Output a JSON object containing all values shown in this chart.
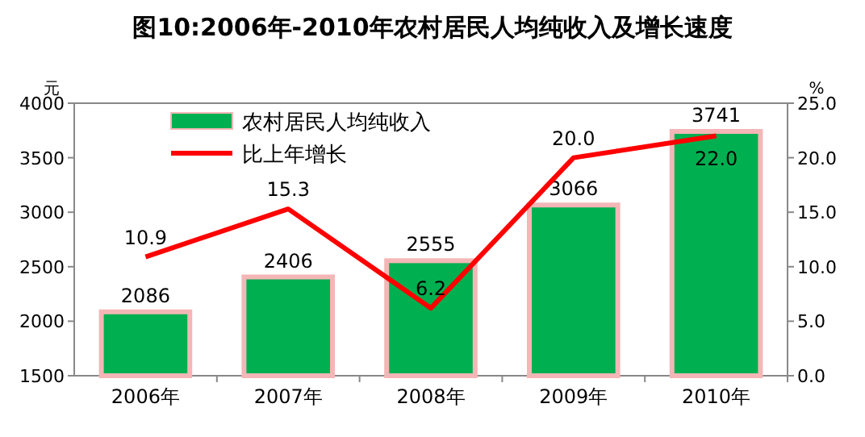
{
  "chart_data": {
    "type": "bar",
    "title": "图10:2006年-2010年农村居民人均纯收入及增长速度",
    "categories": [
      "2006年",
      "2007年",
      "2008年",
      "2009年",
      "2010年"
    ],
    "series": [
      {
        "name": "农村居民人均纯收入",
        "color": "#00b050",
        "values": [
          2086,
          2406,
          2555,
          3066,
          3741
        ],
        "value_labels": [
          "2086",
          "2406",
          "2555",
          "3066",
          "3741"
        ]
      },
      {
        "name": "比上年增长",
        "type": "line",
        "axis": "y2",
        "color": "#ff0000",
        "values": [
          10.9,
          15.3,
          6.2,
          20.0,
          22.0
        ],
        "value_labels": [
          "10.9",
          "15.3",
          "6.2",
          "20.0",
          "22.0"
        ]
      }
    ],
    "ylabel": "元",
    "y2label": "%",
    "ylim": [
      1500,
      4000
    ],
    "yticks": [
      1500,
      2000,
      2500,
      3000,
      3500,
      4000
    ],
    "y2lim": [
      0,
      25
    ],
    "y2ticks": [
      {
        "value": 0,
        "label": "0.0"
      },
      {
        "value": 5,
        "label": "5.0"
      },
      {
        "value": 10,
        "label": "10.0"
      },
      {
        "value": 15,
        "label": "15.0"
      },
      {
        "value": 20,
        "label": "20.0"
      },
      {
        "value": 25,
        "label": "25.0"
      }
    ],
    "legend": "top left",
    "grid": false
  }
}
